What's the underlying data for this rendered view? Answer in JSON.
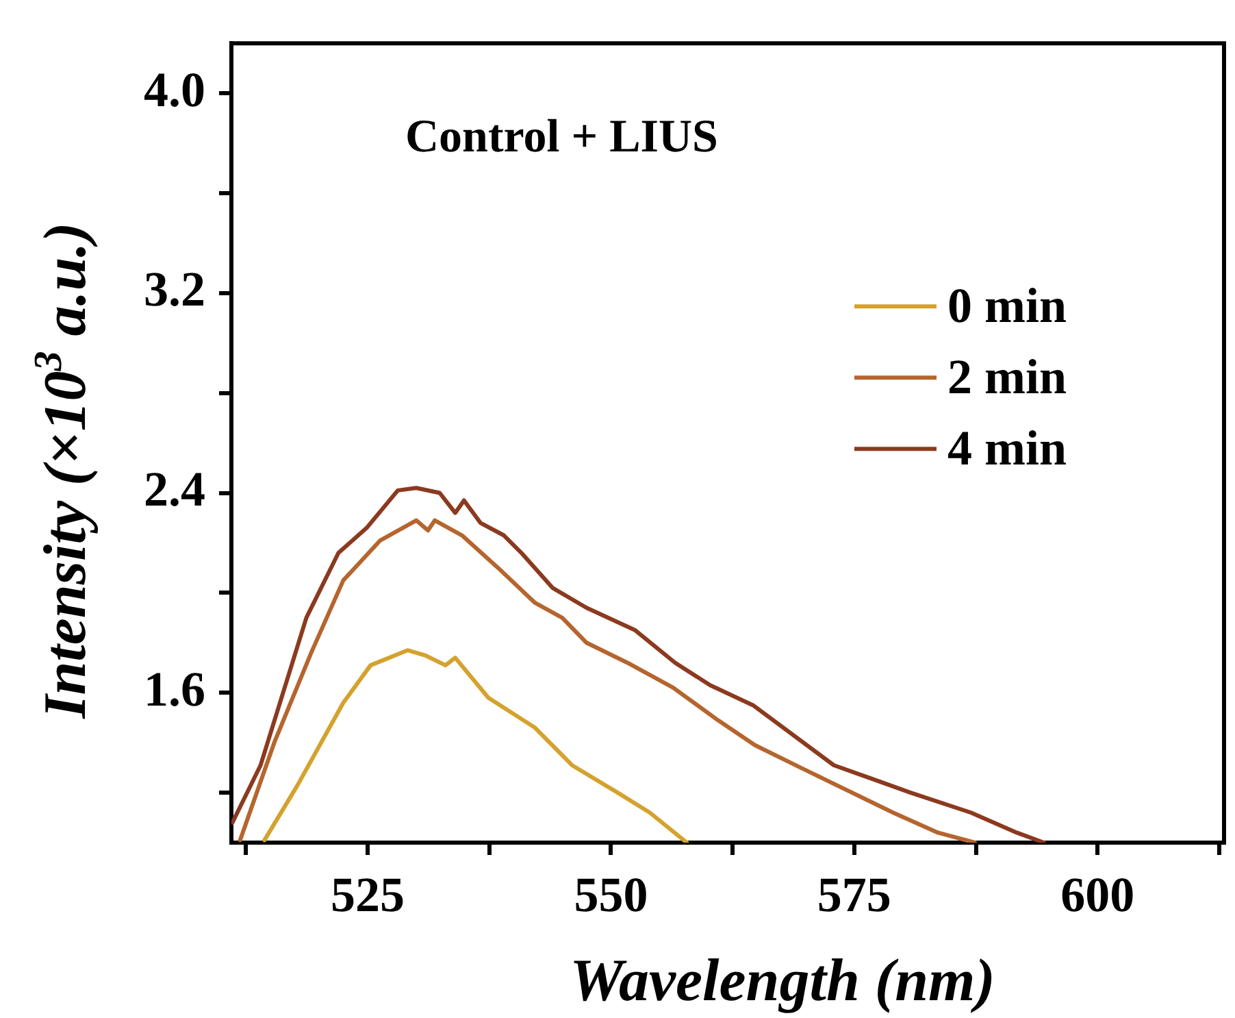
{
  "chart_data": {
    "type": "line",
    "title": "Control + LIUS",
    "xlabel": "Wavelength (nm)",
    "ylabel": "Intensity (×10$^{3}$ a.u.)",
    "xlim": [
      511,
      613
    ],
    "xticks": [
      {
        "value": 512.5,
        "label": null
      },
      525,
      {
        "value": 537.5,
        "label": null
      },
      550,
      {
        "value": 562.5,
        "label": null
      },
      575,
      {
        "value": 587.5,
        "label": null
      },
      600,
      {
        "value": 612.5,
        "label": null
      }
    ],
    "ylim": [
      1.0,
      4.2
    ],
    "yticks": [
      {
        "value": 1.2,
        "label": null
      },
      {
        "value": 1.6,
        "label": "1.6"
      },
      {
        "value": 2.0,
        "label": null
      },
      {
        "value": 2.4,
        "label": "2.4"
      },
      {
        "value": 2.8,
        "label": null
      },
      {
        "value": 3.2,
        "label": "3.2"
      },
      {
        "value": 3.6,
        "label": null
      },
      {
        "value": 4.0,
        "label": "4.0"
      }
    ],
    "grid": false,
    "legend": "top right",
    "marker": "none",
    "line_style": "solid",
    "series": [
      {
        "name": "0 min",
        "color": "#d4a22e",
        "x": [
          514.4,
          517.8,
          522.5,
          525.3,
          529.1,
          530.9,
          533,
          534,
          537.4,
          542.2,
          546,
          550.7,
          554,
          557.8
        ],
        "values": [
          1.01,
          1.23,
          1.56,
          1.71,
          1.77,
          1.75,
          1.71,
          1.74,
          1.58,
          1.46,
          1.31,
          1.2,
          1.12,
          1.0
        ]
      },
      {
        "name": "2 min",
        "color": "#b5652e",
        "x": [
          511.9,
          515.4,
          519.2,
          522.5,
          526.3,
          530,
          531.2,
          531.9,
          534.7,
          538.4,
          542.2,
          545,
          547.5,
          551.7,
          556.4,
          561,
          564.8,
          569.5,
          579,
          583.6,
          587.4
        ],
        "values": [
          1.01,
          1.4,
          1.76,
          2.05,
          2.21,
          2.29,
          2.25,
          2.29,
          2.23,
          2.1,
          1.96,
          1.9,
          1.8,
          1.72,
          1.62,
          1.49,
          1.39,
          1.3,
          1.12,
          1.04,
          1.0
        ]
      },
      {
        "name": "4 min",
        "color": "#8b3a1f",
        "x": [
          511.1,
          514,
          518.7,
          522,
          524.9,
          528.1,
          530,
          532.4,
          534,
          534.9,
          536.6,
          539,
          540.8,
          544,
          547.5,
          552.5,
          556.6,
          560.2,
          564.6,
          572.9,
          580.8,
          587,
          591.7,
          594.5
        ],
        "values": [
          1.08,
          1.31,
          1.9,
          2.16,
          2.26,
          2.41,
          2.42,
          2.4,
          2.32,
          2.37,
          2.28,
          2.23,
          2.16,
          2.02,
          1.94,
          1.85,
          1.72,
          1.63,
          1.55,
          1.31,
          1.2,
          1.12,
          1.04,
          1.0
        ]
      }
    ]
  }
}
